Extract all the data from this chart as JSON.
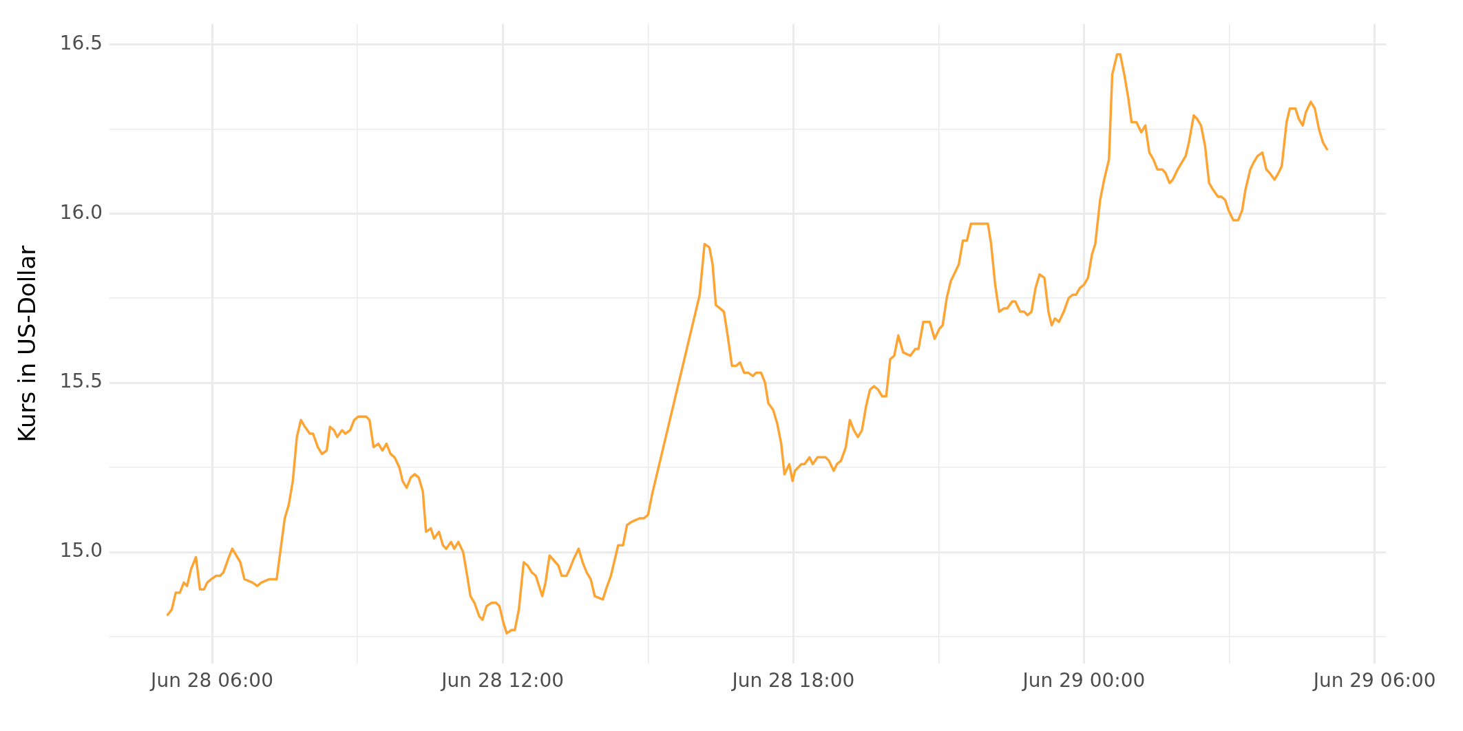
{
  "chart_data": {
    "type": "line",
    "ylabel": "Kurs in US-Dollar",
    "color": "#fca535",
    "marker": "none",
    "line_style": "solid",
    "grid": true,
    "legend": false,
    "x": [
      "--06-28T05:05",
      "--06-28T05:10",
      "--06-28T05:15",
      "--06-28T05:20",
      "--06-28T05:25",
      "--06-28T05:29",
      "--06-28T05:34",
      "--06-28T05:40",
      "--06-28T05:45",
      "--06-28T05:50",
      "--06-28T05:54",
      "--06-28T05:59",
      "--06-28T06:05",
      "--06-28T06:10",
      "--06-28T06:14",
      "--06-28T06:20",
      "--06-28T06:25",
      "--06-28T06:30",
      "--06-28T06:35",
      "--06-28T06:40",
      "--06-28T06:50",
      "--06-28T06:56",
      "--06-28T07:01",
      "--06-28T07:06",
      "--06-28T07:11",
      "--06-28T07:16",
      "--06-28T07:20",
      "--06-28T07:30",
      "--06-28T07:35",
      "--06-28T07:40",
      "--06-28T07:45",
      "--06-28T07:50",
      "--06-28T07:55",
      "--06-28T08:01",
      "--06-28T08:05",
      "--06-28T08:11",
      "--06-28T08:16",
      "--06-28T08:22",
      "--06-28T08:26",
      "--06-28T08:31",
      "--06-28T08:35",
      "--06-28T08:41",
      "--06-28T08:45",
      "--06-28T08:51",
      "--06-28T08:56",
      "--06-28T09:01",
      "--06-28T09:06",
      "--06-28T09:11",
      "--06-28T09:15",
      "--06-28T09:20",
      "--06-28T09:26",
      "--06-28T09:31",
      "--06-28T09:36",
      "--06-28T09:41",
      "--06-28T09:46",
      "--06-28T09:52",
      "--06-28T09:56",
      "--06-28T10:01",
      "--06-28T10:06",
      "--06-28T10:11",
      "--06-28T10:16",
      "--06-28T10:21",
      "--06-28T10:25",
      "--06-28T10:31",
      "--06-28T10:35",
      "--06-28T10:41",
      "--06-28T10:46",
      "--06-28T10:50",
      "--06-28T10:56",
      "--06-28T11:00",
      "--06-28T11:05",
      "--06-28T11:11",
      "--06-28T11:16",
      "--06-28T11:20",
      "--06-28T11:25",
      "--06-28T11:31",
      "--06-28T11:35",
      "--06-28T11:40",
      "--06-28T11:46",
      "--06-28T11:52",
      "--06-28T11:56",
      "--06-28T12:01",
      "--06-28T12:05",
      "--06-28T12:11",
      "--06-28T12:15",
      "--06-28T12:20",
      "--06-28T12:26",
      "--06-28T12:31",
      "--06-28T12:36",
      "--06-28T12:41",
      "--06-28T12:49",
      "--06-28T12:53",
      "--06-28T12:58",
      "--06-28T13:09",
      "--06-28T13:13",
      "--06-28T13:19",
      "--06-28T13:23",
      "--06-28T13:28",
      "--06-28T13:34",
      "--06-28T13:39",
      "--06-28T13:44",
      "--06-28T13:49",
      "--06-28T13:54",
      "--06-28T14:04",
      "--06-28T14:08",
      "--06-28T14:14",
      "--06-28T14:23",
      "--06-28T14:29",
      "--06-28T14:34",
      "--06-28T14:40",
      "--06-28T14:50",
      "--06-28T14:55",
      "--06-28T15:00",
      "--06-28T15:05",
      "--06-28T15:11",
      "--06-28T16:04",
      "--06-28T16:10",
      "--06-28T16:16",
      "--06-28T16:20",
      "--06-28T16:24",
      "--06-28T16:29",
      "--06-28T16:34",
      "--06-28T16:38",
      "--06-28T16:44",
      "--06-28T16:49",
      "--06-28T16:54",
      "--06-28T16:59",
      "--06-28T17:04",
      "--06-28T17:10",
      "--06-28T17:14",
      "--06-28T17:20",
      "--06-28T17:25",
      "--06-28T17:29",
      "--06-28T17:35",
      "--06-28T17:40",
      "--06-28T17:45",
      "--06-28T17:49",
      "--06-28T17:55",
      "--06-28T17:59",
      "--06-28T18:02",
      "--06-28T18:10",
      "--06-28T18:14",
      "--06-28T18:20",
      "--06-28T18:24",
      "--06-28T18:30",
      "--06-28T18:40",
      "--06-28T18:44",
      "--06-28T18:50",
      "--06-28T18:54",
      "--06-28T18:59",
      "--06-28T19:05",
      "--06-28T19:10",
      "--06-28T19:15",
      "--06-28T19:20",
      "--06-28T19:25",
      "--06-28T19:30",
      "--06-28T19:35",
      "--06-28T19:40",
      "--06-28T19:45",
      "--06-28T19:50",
      "--06-28T19:55",
      "--06-28T20:00",
      "--06-28T20:05",
      "--06-28T20:10",
      "--06-28T20:16",
      "--06-28T20:25",
      "--06-28T20:31",
      "--06-28T20:35",
      "--06-28T20:41",
      "--06-28T20:49",
      "--06-28T20:55",
      "--06-28T21:01",
      "--06-28T21:05",
      "--06-28T21:10",
      "--06-28T21:15",
      "--06-28T21:25",
      "--06-28T21:30",
      "--06-28T21:35",
      "--06-28T21:40",
      "--06-28T22:01",
      "--06-28T22:05",
      "--06-28T22:10",
      "--06-28T22:15",
      "--06-28T22:21",
      "--06-28T22:25",
      "--06-28T22:31",
      "--06-28T22:35",
      "--06-28T22:41",
      "--06-28T22:46",
      "--06-28T22:50",
      "--06-28T22:55",
      "--06-28T23:00",
      "--06-28T23:05",
      "--06-28T23:11",
      "--06-28T23:16",
      "--06-28T23:20",
      "--06-28T23:24",
      "--06-28T23:29",
      "--06-28T23:35",
      "--06-28T23:41",
      "--06-28T23:46",
      "--06-28T23:50",
      "--06-28T23:55",
      "--06-29T00:00",
      "--06-29T00:05",
      "--06-29T00:10",
      "--06-29T00:14",
      "--06-29T00:20",
      "--06-29T00:25",
      "--06-29T00:31",
      "--06-29T00:35",
      "--06-29T00:41",
      "--06-29T00:45",
      "--06-29T00:50",
      "--06-29T00:55",
      "--06-29T00:59",
      "--06-29T01:05",
      "--06-29T01:11",
      "--06-29T01:16",
      "--06-29T01:21",
      "--06-29T01:26",
      "--06-29T01:31",
      "--06-29T01:37",
      "--06-29T01:41",
      "--06-29T01:46",
      "--06-29T01:50",
      "--06-29T01:56",
      "--06-29T02:01",
      "--06-29T02:06",
      "--06-29T02:10",
      "--06-29T02:16",
      "--06-29T02:20",
      "--06-29T02:25",
      "--06-29T02:30",
      "--06-29T02:35",
      "--06-29T02:40",
      "--06-29T02:46",
      "--06-29T02:50",
      "--06-29T02:55",
      "--06-29T02:59",
      "--06-29T03:05",
      "--06-29T03:11",
      "--06-29T03:16",
      "--06-29T03:20",
      "--06-29T03:26",
      "--06-29T03:30",
      "--06-29T03:35",
      "--06-29T03:41",
      "--06-29T03:46",
      "--06-29T03:50",
      "--06-29T03:56",
      "--06-29T04:01",
      "--06-29T04:05",
      "--06-29T04:11",
      "--06-29T04:15",
      "--06-29T04:22",
      "--06-29T04:26",
      "--06-29T04:31",
      "--06-29T04:35",
      "--06-29T04:41",
      "--06-29T04:46",
      "--06-29T04:51",
      "--06-29T04:56",
      "--06-29T05:01"
    ],
    "values": [
      14.815,
      14.83,
      14.88,
      14.88,
      14.91,
      14.9,
      14.95,
      14.985,
      14.89,
      14.89,
      14.91,
      14.92,
      14.93,
      14.93,
      14.94,
      14.98,
      15.01,
      14.99,
      14.97,
      14.92,
      14.91,
      14.9,
      14.91,
      14.915,
      14.92,
      14.92,
      14.92,
      15.1,
      15.14,
      15.21,
      15.34,
      15.39,
      15.37,
      15.35,
      15.35,
      15.31,
      15.29,
      15.3,
      15.37,
      15.36,
      15.34,
      15.36,
      15.35,
      15.36,
      15.39,
      15.4,
      15.4,
      15.4,
      15.39,
      15.31,
      15.32,
      15.3,
      15.32,
      15.29,
      15.28,
      15.25,
      15.21,
      15.19,
      15.22,
      15.23,
      15.22,
      15.18,
      15.06,
      15.07,
      15.04,
      15.06,
      15.02,
      15.01,
      15.03,
      15.01,
      15.03,
      15.0,
      14.93,
      14.87,
      14.85,
      14.81,
      14.8,
      14.84,
      14.85,
      14.85,
      14.84,
      14.79,
      14.76,
      14.77,
      14.77,
      14.83,
      14.97,
      14.96,
      14.94,
      14.93,
      14.87,
      14.91,
      14.99,
      14.96,
      14.93,
      14.93,
      14.95,
      14.98,
      15.01,
      14.97,
      14.94,
      14.92,
      14.87,
      14.86,
      14.89,
      14.93,
      15.02,
      15.02,
      15.08,
      15.09,
      15.1,
      15.1,
      15.11,
      15.17,
      15.23,
      15.76,
      15.91,
      15.9,
      15.85,
      15.73,
      15.72,
      15.71,
      15.65,
      15.55,
      15.55,
      15.56,
      15.53,
      15.53,
      15.52,
      15.53,
      15.53,
      15.5,
      15.44,
      15.42,
      15.38,
      15.32,
      15.23,
      15.26,
      15.21,
      15.24,
      15.26,
      15.26,
      15.28,
      15.26,
      15.28,
      15.28,
      15.27,
      15.24,
      15.26,
      15.27,
      15.31,
      15.39,
      15.36,
      15.34,
      15.36,
      15.43,
      15.48,
      15.49,
      15.48,
      15.46,
      15.46,
      15.57,
      15.58,
      15.64,
      15.59,
      15.58,
      15.6,
      15.6,
      15.68,
      15.68,
      15.63,
      15.66,
      15.67,
      15.75,
      15.8,
      15.85,
      15.92,
      15.92,
      15.97,
      15.97,
      15.91,
      15.79,
      15.71,
      15.72,
      15.72,
      15.74,
      15.74,
      15.71,
      15.71,
      15.7,
      15.71,
      15.78,
      15.82,
      15.81,
      15.71,
      15.67,
      15.69,
      15.68,
      15.71,
      15.75,
      15.76,
      15.76,
      15.78,
      15.79,
      15.81,
      15.88,
      15.91,
      16.04,
      16.1,
      16.16,
      16.41,
      16.47,
      16.47,
      16.41,
      16.34,
      16.27,
      16.27,
      16.24,
      16.26,
      16.18,
      16.16,
      16.13,
      16.13,
      16.12,
      16.09,
      16.1,
      16.13,
      16.15,
      16.17,
      16.21,
      16.29,
      16.28,
      16.26,
      16.2,
      16.09,
      16.07,
      16.05,
      16.05,
      16.04,
      16.01,
      15.98,
      15.98,
      16.01,
      16.07,
      16.13,
      16.15,
      16.17,
      16.18,
      16.13,
      16.12,
      16.1,
      16.12,
      16.14,
      16.27,
      16.31,
      16.31,
      16.28,
      16.26,
      16.3,
      16.33,
      16.31,
      16.25,
      16.21,
      16.19
    ],
    "xlim": [
      "--06-28T03:53",
      "--06-29T06:14"
    ],
    "xticks": [
      {
        "value": "--06-28T06:00",
        "label": "Jun 28 06:00"
      },
      {
        "value": "--06-28T09:00",
        "label": null
      },
      {
        "value": "--06-28T12:00",
        "label": "Jun 28 12:00"
      },
      {
        "value": "--06-28T15:00",
        "label": null
      },
      {
        "value": "--06-28T18:00",
        "label": "Jun 28 18:00"
      },
      {
        "value": "--06-28T21:00",
        "label": null
      },
      {
        "value": "--06-29T00:00",
        "label": "Jun 29 00:00"
      },
      {
        "value": "--06-29T03:00",
        "label": null
      },
      {
        "value": "--06-29T06:00",
        "label": "Jun 29 06:00"
      }
    ],
    "ylim": [
      14.67,
      16.56
    ],
    "yticks": [
      {
        "value": 14.75,
        "label": null
      },
      {
        "value": 15,
        "label": "15.0"
      },
      {
        "value": 15.25,
        "label": null
      },
      {
        "value": 15.5,
        "label": "15.5"
      },
      {
        "value": 15.75,
        "label": null
      },
      {
        "value": 16,
        "label": "16.0"
      },
      {
        "value": 16.25,
        "label": null
      },
      {
        "value": 16.5,
        "label": "16.5"
      }
    ]
  }
}
